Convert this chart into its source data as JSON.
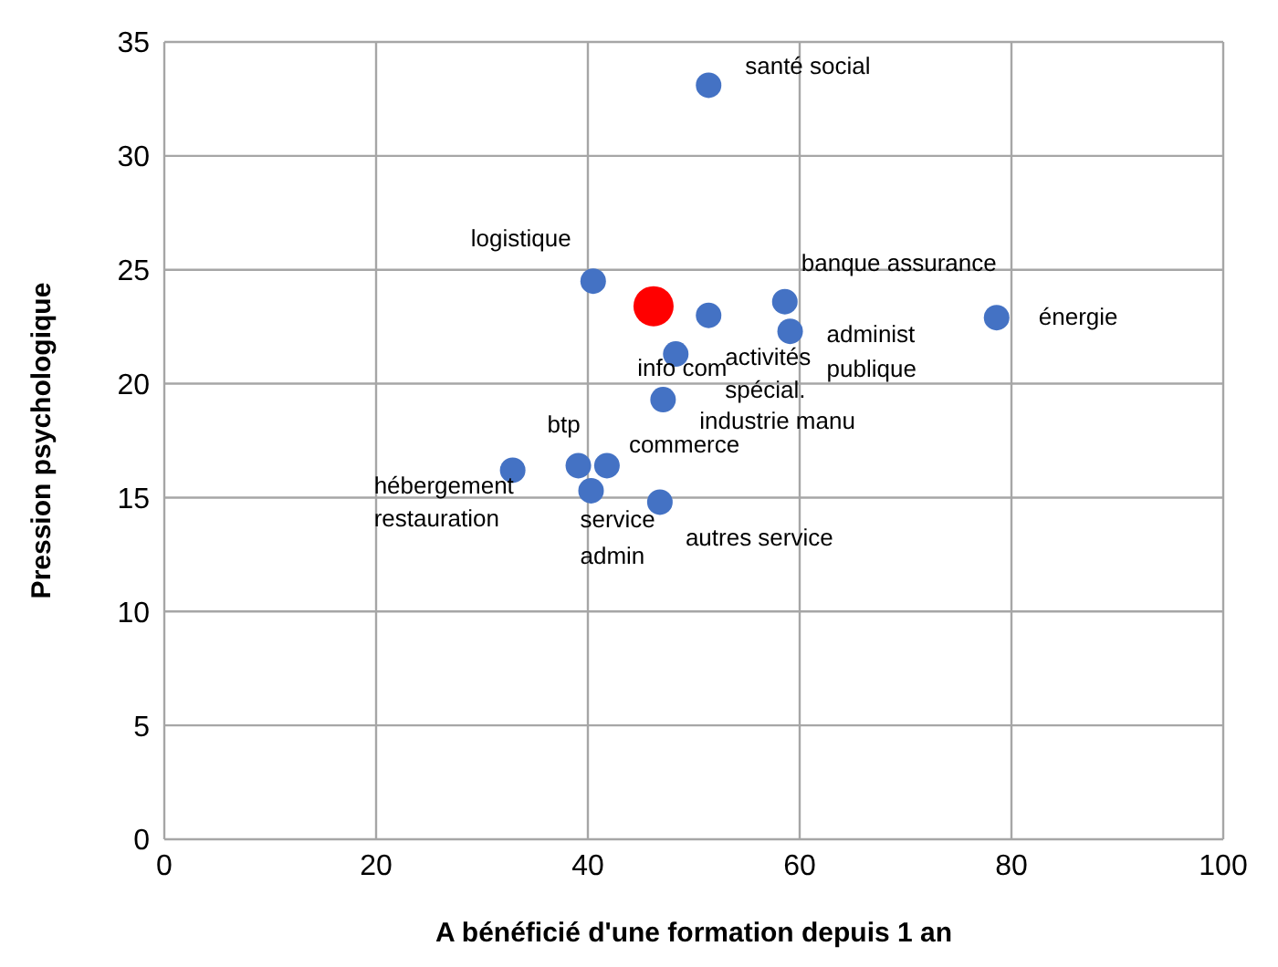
{
  "chart_data": {
    "type": "scatter",
    "xlabel": "A bénéficié d'une formation depuis 1 an",
    "ylabel": "Pression psychologique",
    "xlim": [
      0,
      100
    ],
    "xticks": [
      0,
      20,
      40,
      60,
      80,
      100
    ],
    "ylim": [
      0,
      35
    ],
    "yticks": [
      0,
      5,
      10,
      15,
      20,
      25,
      30,
      35
    ],
    "grid": true,
    "legend": false,
    "marker": "circle",
    "series": [
      {
        "color": "#4472c4",
        "x": [
          51.4,
          40.5,
          51.4,
          58.6,
          59.1,
          78.6,
          48.3,
          47.1,
          39.1,
          41.8,
          32.9,
          40.3,
          46.8
        ],
        "values": [
          33.1,
          24.5,
          23.0,
          23.6,
          22.3,
          22.9,
          21.3,
          19.3,
          16.4,
          16.4,
          16.2,
          15.3,
          14.8
        ],
        "value_labels": [
          "santé social",
          "logistique",
          "activités spécial.",
          "banque assurance",
          "administ publique",
          "énergie",
          "info com",
          "industrie manu",
          "btp",
          "commerce",
          "hébergement restauration",
          "service admin",
          "autres service"
        ]
      },
      {
        "color": "#ff0000",
        "x": [
          46.2
        ],
        "values": [
          23.4
        ],
        "value_labels": [
          null
        ]
      }
    ]
  }
}
